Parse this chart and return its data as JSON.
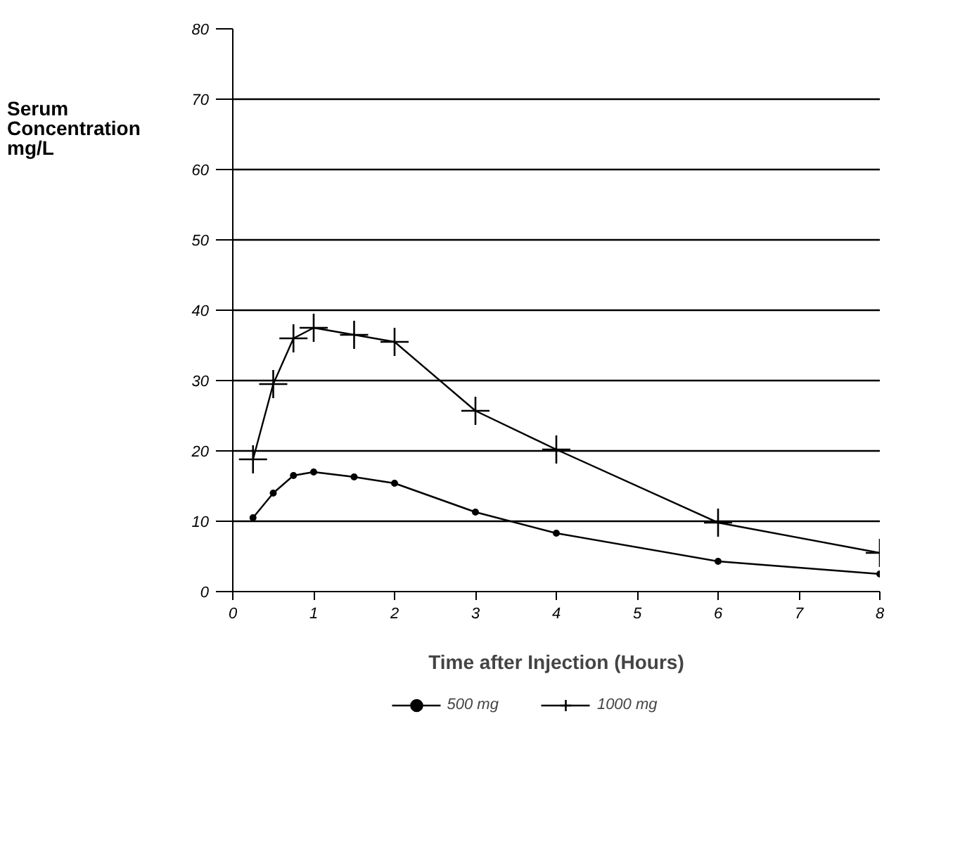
{
  "chart_data": {
    "type": "line",
    "xlabel": "Time after Injection (Hours)",
    "ylabel": "Serum Concentration mg/L",
    "xlim": [
      0,
      8
    ],
    "xticks": [
      0,
      1,
      2,
      3,
      4,
      5,
      6,
      7,
      8
    ],
    "ylim": [
      0,
      80
    ],
    "yticks": [
      0,
      10,
      20,
      30,
      40,
      50,
      60,
      70,
      80
    ],
    "grid": "y",
    "legend": "bottom",
    "line_style": "solid",
    "series": [
      {
        "name": "500 mg",
        "color": "#000000",
        "marker": "circle",
        "x": [
          0.25,
          0.5,
          0.75,
          1,
          1.5,
          2,
          3,
          4,
          6,
          8
        ],
        "values": [
          10.5,
          14,
          16.5,
          17,
          16.3,
          15.4,
          11.3,
          8.3,
          4.3,
          2.5
        ]
      },
      {
        "name": "1000 mg",
        "color": "#000000",
        "marker": "cross",
        "x": [
          0.25,
          0.5,
          0.75,
          1,
          1.5,
          2,
          3,
          4,
          6,
          8
        ],
        "values": [
          18.8,
          29.5,
          36,
          37.5,
          36.5,
          35.5,
          25.7,
          20.2,
          9.8,
          5.5
        ]
      }
    ]
  }
}
